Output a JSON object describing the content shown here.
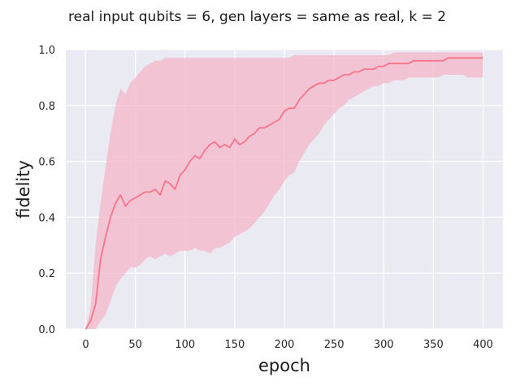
{
  "chart_data": {
    "type": "line",
    "title": "real input qubits = 6, gen layers = same as real, k = 2",
    "xlabel": "epoch",
    "ylabel": "fidelity",
    "xlim": [
      -20,
      420
    ],
    "ylim": [
      0,
      1.0
    ],
    "xticks": [
      "0",
      "50",
      "100",
      "150",
      "200",
      "250",
      "300",
      "350",
      "400"
    ],
    "yticks": [
      "0.0",
      "0.2",
      "0.4",
      "0.6",
      "0.8",
      "1.0"
    ],
    "grid": true,
    "background": "#EAEAF2",
    "line_color": "#F7748A",
    "band_color": "#F4B6C7",
    "series": [
      {
        "x": [
          0,
          5,
          10,
          15,
          20,
          25,
          30,
          35,
          40,
          45,
          50,
          55,
          60,
          65,
          70,
          75,
          80,
          85,
          90,
          95,
          100,
          105,
          110,
          115,
          120,
          125,
          130,
          135,
          140,
          145,
          150,
          155,
          160,
          165,
          170,
          175,
          180,
          185,
          190,
          195,
          200,
          205,
          210,
          215,
          220,
          225,
          230,
          235,
          240,
          245,
          250,
          255,
          260,
          265,
          270,
          275,
          280,
          285,
          290,
          295,
          300,
          305,
          310,
          315,
          320,
          325,
          330,
          335,
          340,
          345,
          350,
          355,
          360,
          365,
          370,
          375,
          380,
          385,
          390,
          395,
          400
        ],
        "values": [
          0.0,
          0.03,
          0.09,
          0.25,
          0.33,
          0.4,
          0.45,
          0.48,
          0.44,
          0.46,
          0.47,
          0.48,
          0.49,
          0.49,
          0.5,
          0.48,
          0.53,
          0.52,
          0.5,
          0.55,
          0.57,
          0.6,
          0.62,
          0.61,
          0.64,
          0.66,
          0.67,
          0.65,
          0.66,
          0.65,
          0.68,
          0.66,
          0.67,
          0.69,
          0.7,
          0.72,
          0.72,
          0.73,
          0.74,
          0.75,
          0.78,
          0.79,
          0.79,
          0.82,
          0.84,
          0.86,
          0.87,
          0.88,
          0.88,
          0.89,
          0.89,
          0.9,
          0.91,
          0.91,
          0.92,
          0.92,
          0.93,
          0.93,
          0.93,
          0.94,
          0.94,
          0.95,
          0.95,
          0.95,
          0.95,
          0.95,
          0.96,
          0.96,
          0.96,
          0.96,
          0.96,
          0.96,
          0.96,
          0.97,
          0.97,
          0.97,
          0.97,
          0.97,
          0.97,
          0.97,
          0.97
        ],
        "lower": [
          0.0,
          0.0,
          0.0,
          0.03,
          0.05,
          0.1,
          0.15,
          0.18,
          0.2,
          0.22,
          0.22,
          0.23,
          0.25,
          0.26,
          0.25,
          0.26,
          0.27,
          0.26,
          0.27,
          0.28,
          0.28,
          0.28,
          0.29,
          0.28,
          0.28,
          0.27,
          0.29,
          0.29,
          0.3,
          0.31,
          0.33,
          0.34,
          0.35,
          0.36,
          0.38,
          0.4,
          0.42,
          0.45,
          0.48,
          0.5,
          0.53,
          0.55,
          0.56,
          0.6,
          0.63,
          0.66,
          0.68,
          0.7,
          0.73,
          0.75,
          0.77,
          0.79,
          0.8,
          0.82,
          0.83,
          0.84,
          0.85,
          0.86,
          0.87,
          0.87,
          0.88,
          0.88,
          0.89,
          0.89,
          0.89,
          0.9,
          0.9,
          0.9,
          0.9,
          0.9,
          0.9,
          0.9,
          0.91,
          0.91,
          0.91,
          0.91,
          0.91,
          0.9,
          0.9,
          0.9,
          0.9
        ],
        "upper": [
          0.0,
          0.08,
          0.3,
          0.45,
          0.58,
          0.7,
          0.8,
          0.86,
          0.84,
          0.88,
          0.9,
          0.92,
          0.94,
          0.95,
          0.96,
          0.96,
          0.97,
          0.97,
          0.97,
          0.97,
          0.97,
          0.97,
          0.97,
          0.97,
          0.97,
          0.97,
          0.97,
          0.97,
          0.97,
          0.97,
          0.97,
          0.97,
          0.97,
          0.97,
          0.97,
          0.97,
          0.97,
          0.97,
          0.97,
          0.97,
          0.97,
          0.97,
          0.98,
          0.98,
          0.98,
          0.98,
          0.98,
          0.98,
          0.98,
          0.98,
          0.98,
          0.98,
          0.98,
          0.98,
          0.98,
          0.98,
          0.98,
          0.98,
          0.98,
          0.98,
          0.98,
          0.98,
          0.99,
          0.99,
          0.99,
          0.99,
          0.99,
          0.99,
          0.99,
          0.99,
          0.99,
          0.99,
          0.99,
          0.99,
          0.99,
          0.99,
          0.99,
          0.99,
          0.99,
          0.99,
          0.99
        ]
      }
    ]
  }
}
